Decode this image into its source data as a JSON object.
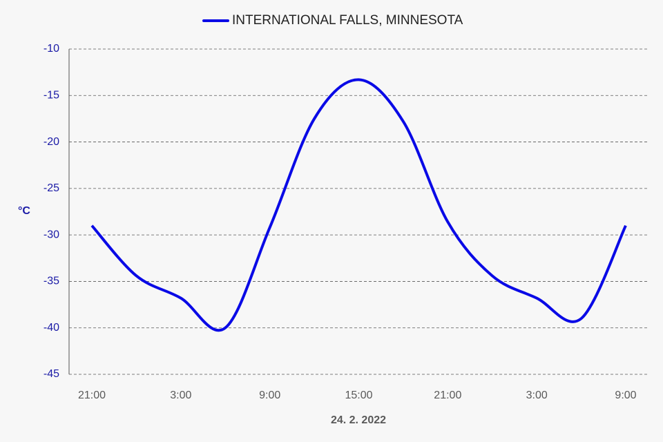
{
  "chart_data": {
    "type": "line",
    "legend_title": null,
    "series": [
      {
        "name": "INTERNATIONAL FALLS, MINNESOTA",
        "color": "#0a0ae6",
        "values": [
          -29,
          -34.4,
          -36.8,
          -40,
          -29.2,
          -17.5,
          -13.3,
          -17.8,
          -28.6,
          -34.4,
          -36.8,
          -39,
          -29
        ]
      }
    ],
    "categories": [
      "21:00",
      null,
      "3:00",
      null,
      "9:00",
      null,
      "15:00",
      null,
      "21:00",
      null,
      "3:00",
      null,
      "9:00"
    ],
    "x_label": "24. 2. 2022",
    "y_label": "°C",
    "ylim": [
      -45,
      -10
    ],
    "yticks": [
      -45,
      -40,
      -35,
      -30,
      -25,
      -20,
      -15,
      -10
    ],
    "grid": true
  }
}
